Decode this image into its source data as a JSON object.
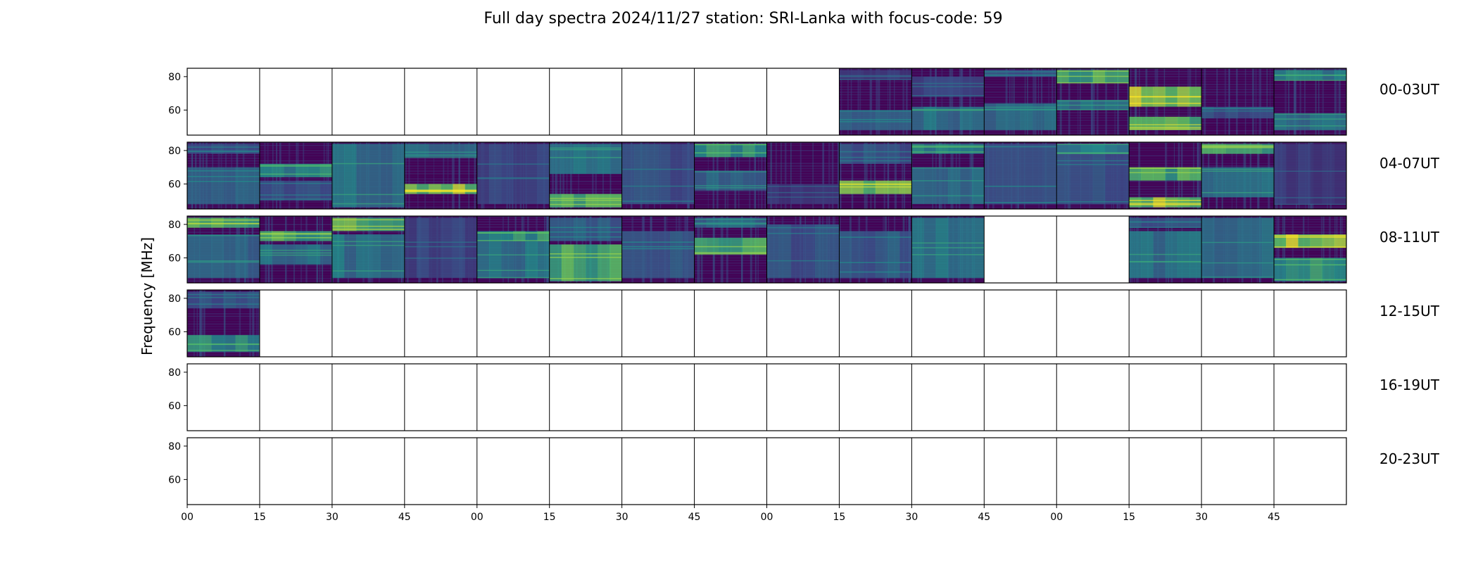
{
  "chart_data": {
    "type": "heatmap",
    "title": "Full day spectra 2024/11/27 station: SRI-Lanka with focus-code: 59",
    "ylabel": "Frequency [MHz]",
    "xlabel": "",
    "y_ticks": [
      "80",
      "60"
    ],
    "x_ticks": [
      "00",
      "15",
      "30",
      "45",
      "00",
      "15",
      "30",
      "45",
      "00",
      "15",
      "30",
      "45",
      "00",
      "15",
      "30",
      "45"
    ],
    "ylim": [
      45,
      85
    ],
    "colormap": "viridis",
    "colors": {
      "background": "#440154",
      "low": "#472d7b",
      "mid": "#2c728e",
      "high": "#3bbf74",
      "peak": "#a0da39"
    },
    "rows": [
      {
        "label": "00-03UT",
        "panels": [
          {
            "has_data": false
          },
          {
            "has_data": false
          },
          {
            "has_data": false
          },
          {
            "has_data": false
          },
          {
            "has_data": false
          },
          {
            "has_data": false
          },
          {
            "has_data": false
          },
          {
            "has_data": false
          },
          {
            "has_data": false
          },
          {
            "has_data": true,
            "bands": [
              [
                48,
                60,
                0.35
              ],
              [
                78,
                84,
                0.2
              ]
            ]
          },
          {
            "has_data": true,
            "bands": [
              [
                48,
                62,
                0.45
              ],
              [
                68,
                80,
                0.25
              ]
            ]
          },
          {
            "has_data": true,
            "bands": [
              [
                48,
                64,
                0.4
              ],
              [
                80,
                84,
                0.3
              ]
            ]
          },
          {
            "has_data": true,
            "bands": [
              [
                60,
                66,
                0.45
              ],
              [
                76,
                84,
                0.7
              ]
            ]
          },
          {
            "has_data": true,
            "bands": [
              [
                48,
                56,
                0.8
              ],
              [
                62,
                74,
                0.9
              ]
            ]
          },
          {
            "has_data": true,
            "bands": [
              [
                55,
                62,
                0.3
              ]
            ]
          },
          {
            "has_data": true,
            "bands": [
              [
                48,
                58,
                0.45
              ],
              [
                78,
                84,
                0.5
              ]
            ]
          }
        ]
      },
      {
        "label": "04-07UT",
        "panels": [
          {
            "has_data": true,
            "bands": [
              [
                48,
                70,
                0.35
              ],
              [
                78,
                84,
                0.3
              ]
            ]
          },
          {
            "has_data": true,
            "bands": [
              [
                50,
                62,
                0.3
              ],
              [
                64,
                72,
                0.55
              ]
            ]
          },
          {
            "has_data": true,
            "bands": [
              [
                46,
                84,
                0.45
              ]
            ]
          },
          {
            "has_data": true,
            "bands": [
              [
                54,
                60,
                0.85
              ],
              [
                76,
                84,
                0.4
              ]
            ]
          },
          {
            "has_data": true,
            "bands": [
              [
                48,
                84,
                0.25
              ]
            ]
          },
          {
            "has_data": true,
            "bands": [
              [
                46,
                54,
                0.7
              ],
              [
                66,
                84,
                0.45
              ]
            ]
          },
          {
            "has_data": true,
            "bands": [
              [
                48,
                84,
                0.3
              ]
            ]
          },
          {
            "has_data": true,
            "bands": [
              [
                56,
                68,
                0.4
              ],
              [
                76,
                84,
                0.6
              ]
            ]
          },
          {
            "has_data": true,
            "bands": [
              [
                48,
                60,
                0.2
              ]
            ]
          },
          {
            "has_data": true,
            "bands": [
              [
                54,
                62,
                0.8
              ],
              [
                72,
                84,
                0.3
              ]
            ]
          },
          {
            "has_data": true,
            "bands": [
              [
                48,
                70,
                0.4
              ],
              [
                78,
                84,
                0.55
              ]
            ]
          },
          {
            "has_data": true,
            "bands": [
              [
                48,
                84,
                0.35
              ]
            ]
          },
          {
            "has_data": true,
            "bands": [
              [
                48,
                84,
                0.3
              ],
              [
                78,
                84,
                0.5
              ]
            ]
          },
          {
            "has_data": true,
            "bands": [
              [
                46,
                52,
                0.85
              ],
              [
                62,
                70,
                0.7
              ]
            ]
          },
          {
            "has_data": true,
            "bands": [
              [
                52,
                70,
                0.45
              ],
              [
                78,
                84,
                0.7
              ]
            ]
          },
          {
            "has_data": true,
            "bands": [
              [
                48,
                84,
                0.2
              ]
            ]
          }
        ]
      },
      {
        "label": "08-11UT",
        "panels": [
          {
            "has_data": true,
            "bands": [
              [
                48,
                74,
                0.4
              ],
              [
                78,
                84,
                0.75
              ]
            ]
          },
          {
            "has_data": true,
            "bands": [
              [
                56,
                68,
                0.45
              ],
              [
                70,
                76,
                0.7
              ]
            ]
          },
          {
            "has_data": true,
            "bands": [
              [
                48,
                74,
                0.45
              ],
              [
                76,
                84,
                0.75
              ]
            ]
          },
          {
            "has_data": true,
            "bands": [
              [
                48,
                84,
                0.25
              ]
            ]
          },
          {
            "has_data": true,
            "bands": [
              [
                48,
                70,
                0.45
              ],
              [
                70,
                76,
                0.6
              ]
            ]
          },
          {
            "has_data": true,
            "bands": [
              [
                46,
                68,
                0.7
              ],
              [
                70,
                84,
                0.35
              ]
            ]
          },
          {
            "has_data": true,
            "bands": [
              [
                48,
                76,
                0.35
              ]
            ]
          },
          {
            "has_data": true,
            "bands": [
              [
                62,
                72,
                0.7
              ],
              [
                78,
                84,
                0.4
              ]
            ]
          },
          {
            "has_data": true,
            "bands": [
              [
                48,
                80,
                0.3
              ]
            ]
          },
          {
            "has_data": true,
            "bands": [
              [
                48,
                76,
                0.35
              ]
            ]
          },
          {
            "has_data": true,
            "bands": [
              [
                48,
                84,
                0.45
              ]
            ]
          },
          {
            "has_data": false
          },
          {
            "has_data": false
          },
          {
            "has_data": true,
            "bands": [
              [
                48,
                76,
                0.45
              ],
              [
                78,
                84,
                0.3
              ]
            ]
          },
          {
            "has_data": true,
            "bands": [
              [
                48,
                84,
                0.4
              ]
            ]
          },
          {
            "has_data": true,
            "bands": [
              [
                46,
                60,
                0.6
              ],
              [
                66,
                74,
                0.9
              ]
            ]
          }
        ]
      },
      {
        "label": "12-15UT",
        "panels": [
          {
            "has_data": true,
            "bands": [
              [
                48,
                58,
                0.55
              ],
              [
                74,
                84,
                0.3
              ]
            ]
          },
          {
            "has_data": false
          },
          {
            "has_data": false
          },
          {
            "has_data": false
          },
          {
            "has_data": false
          },
          {
            "has_data": false
          },
          {
            "has_data": false
          },
          {
            "has_data": false
          },
          {
            "has_data": false
          },
          {
            "has_data": false
          },
          {
            "has_data": false
          },
          {
            "has_data": false
          },
          {
            "has_data": false
          },
          {
            "has_data": false
          },
          {
            "has_data": false
          },
          {
            "has_data": false
          }
        ]
      },
      {
        "label": "16-19UT",
        "panels": [
          {
            "has_data": false
          },
          {
            "has_data": false
          },
          {
            "has_data": false
          },
          {
            "has_data": false
          },
          {
            "has_data": false
          },
          {
            "has_data": false
          },
          {
            "has_data": false
          },
          {
            "has_data": false
          },
          {
            "has_data": false
          },
          {
            "has_data": false
          },
          {
            "has_data": false
          },
          {
            "has_data": false
          },
          {
            "has_data": false
          },
          {
            "has_data": false
          },
          {
            "has_data": false
          },
          {
            "has_data": false
          }
        ]
      },
      {
        "label": "20-23UT",
        "panels": [
          {
            "has_data": false
          },
          {
            "has_data": false
          },
          {
            "has_data": false
          },
          {
            "has_data": false
          },
          {
            "has_data": false
          },
          {
            "has_data": false
          },
          {
            "has_data": false
          },
          {
            "has_data": false
          },
          {
            "has_data": false
          },
          {
            "has_data": false
          },
          {
            "has_data": false
          },
          {
            "has_data": false
          },
          {
            "has_data": false
          },
          {
            "has_data": false
          },
          {
            "has_data": false
          },
          {
            "has_data": false
          }
        ]
      }
    ]
  }
}
